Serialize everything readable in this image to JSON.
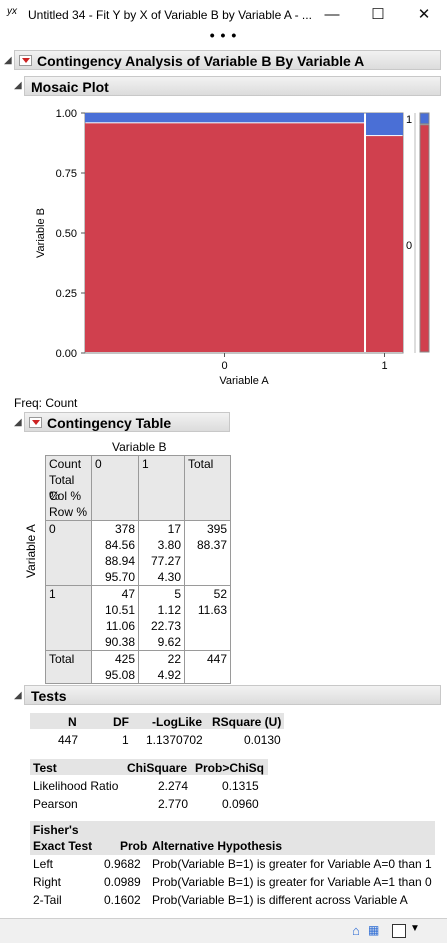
{
  "window": {
    "title": "Untitled 34 - Fit Y by X of Variable B by Variable A - ...",
    "app_icon_text": "yx",
    "minimize_glyph": "—",
    "maximize_glyph": "☐",
    "close_glyph": "✕",
    "more_glyph": "• • •"
  },
  "report": {
    "title": "Contingency Analysis of Variable B By Variable A",
    "mosaic": {
      "title": "Mosaic Plot",
      "y_axis_label": "Variable B",
      "x_axis_label": "Variable A",
      "y_ticks": [
        "1.00",
        "0.75",
        "0.50",
        "0.25",
        "0.00"
      ],
      "x_ticks": [
        "0",
        "1"
      ],
      "right_labels": [
        "1",
        "0"
      ],
      "colors": {
        "level0": "#d0404e",
        "level1": "#4a6fd6"
      }
    },
    "freq_label": "Freq: Count",
    "contingency": {
      "title": "Contingency Table",
      "col_var_label": "Variable B",
      "row_var_label": "Variable A",
      "legend_lines": [
        "Count",
        "Total %",
        "Col %",
        "Row %"
      ],
      "col_headers": [
        "0",
        "1",
        "Total"
      ],
      "rows": [
        {
          "label": "0",
          "cells": [
            [
              "378",
              "84.56",
              "88.94",
              "95.70"
            ],
            [
              "17",
              "3.80",
              "77.27",
              "4.30"
            ],
            [
              "395",
              "88.37"
            ]
          ]
        },
        {
          "label": "1",
          "cells": [
            [
              "47",
              "10.51",
              "11.06",
              "90.38"
            ],
            [
              "5",
              "1.12",
              "22.73",
              "9.62"
            ],
            [
              "52",
              "11.63"
            ]
          ]
        }
      ],
      "total_row": {
        "label": "Total",
        "cells": [
          [
            "425",
            "95.08"
          ],
          [
            "22",
            "4.92"
          ],
          [
            "447"
          ]
        ]
      }
    },
    "tests": {
      "title": "Tests",
      "summary_headers": [
        "N",
        "DF",
        "-LogLike",
        "RSquare (U)"
      ],
      "summary_values": [
        "447",
        "1",
        "1.1370702",
        "0.0130"
      ],
      "chi_headers": [
        "Test",
        "ChiSquare",
        "Prob>ChiSq"
      ],
      "chi_rows": [
        [
          "Likelihood Ratio",
          "2.274",
          "0.1315"
        ],
        [
          "Pearson",
          "2.770",
          "0.0960"
        ]
      ],
      "fisher_header_line1": "Fisher's",
      "fisher_header_line2": "Exact Test",
      "fisher_headers": [
        "Prob",
        "Alternative Hypothesis"
      ],
      "fisher_rows": [
        [
          "Left",
          "0.9682",
          "Prob(Variable B=1) is greater for Variable A=0 than 1"
        ],
        [
          "Right",
          "0.0989",
          "Prob(Variable B=1) is greater for Variable A=1 than 0"
        ],
        [
          "2-Tail",
          "0.1602",
          "Prob(Variable B=1) is different across Variable A"
        ]
      ]
    }
  },
  "chart_data": {
    "type": "mosaic",
    "x_categories": [
      "0",
      "1"
    ],
    "y_categories": [
      "0",
      "1"
    ],
    "x_widths": [
      0.8837,
      0.1163
    ],
    "y_shares": [
      {
        "x": "0",
        "values": [
          0.957,
          0.043
        ]
      },
      {
        "x": "1",
        "values": [
          0.9038,
          0.0962
        ]
      }
    ],
    "marginal_y": [
      0.9508,
      0.0492
    ],
    "ylim": [
      0,
      1
    ],
    "xlabel": "Variable A",
    "ylabel": "Variable B"
  }
}
